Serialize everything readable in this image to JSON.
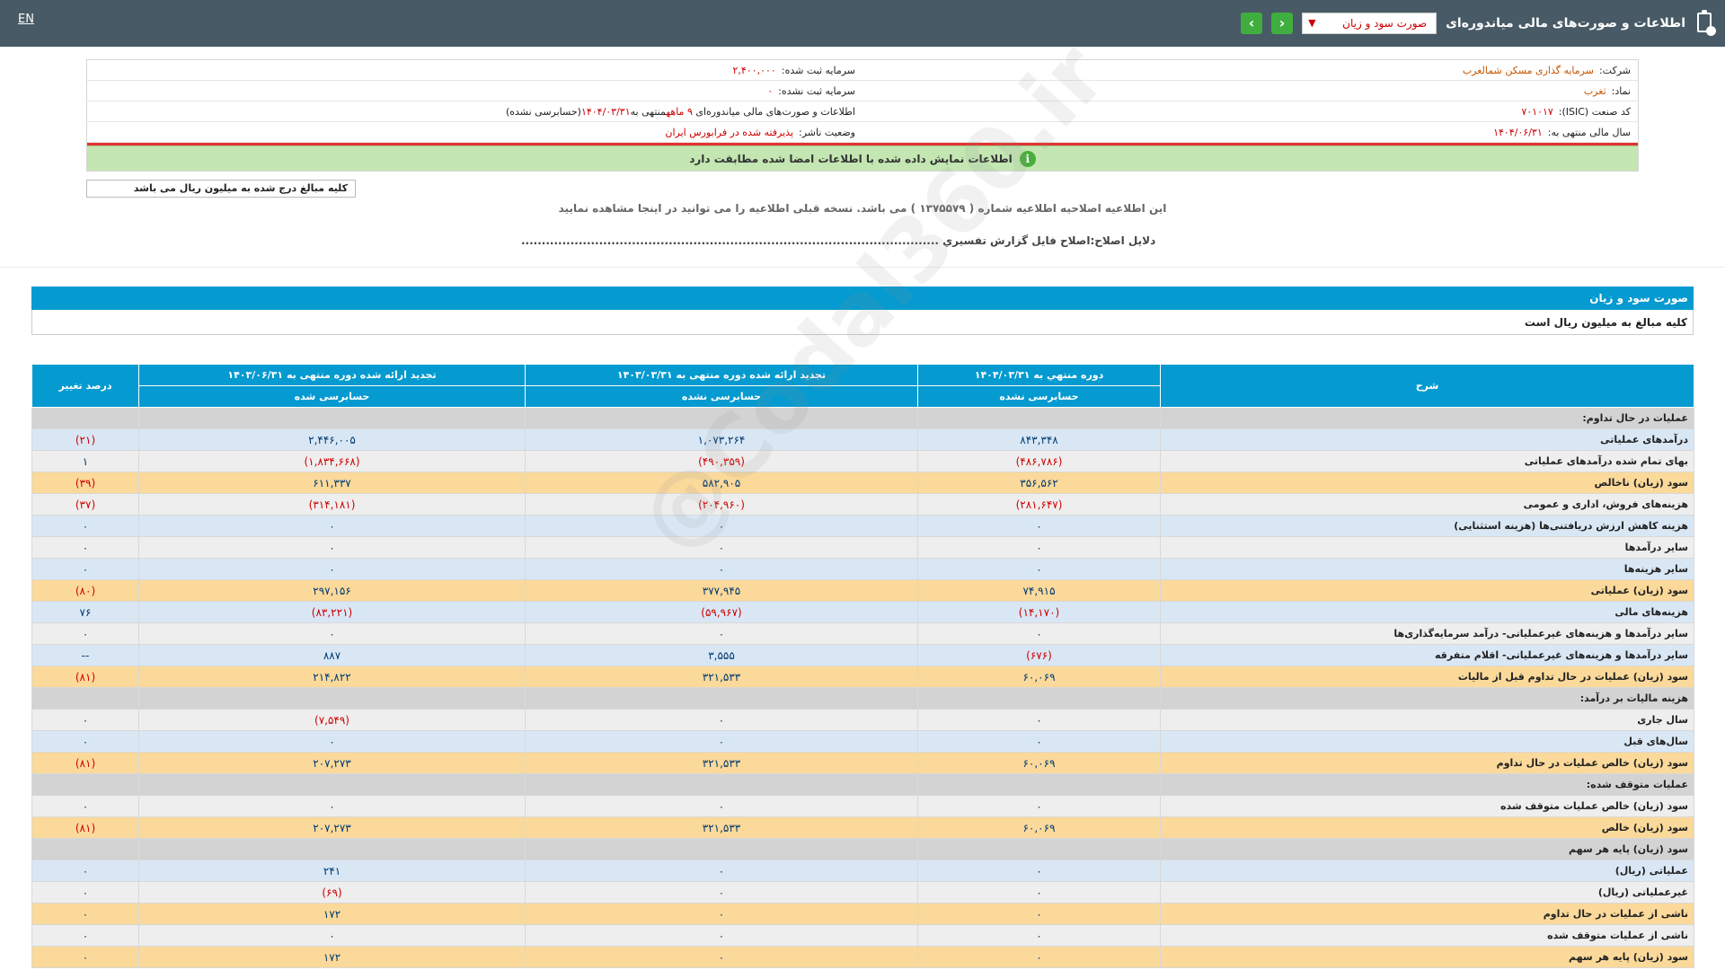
{
  "topbar": {
    "lang": "EN",
    "title": "اطلاعات و صورت‌های مالی میاندوره‌ای",
    "report_select": "صورت سود و زیان"
  },
  "info": {
    "company_label": "شرکت:",
    "company": "سرمایه گذاری مسکن شمالغرب",
    "symbol_label": "نماد:",
    "symbol": "ثغرب",
    "isic_label": "کد صنعت (ISIC):",
    "isic": "۷۰۱۰۱۷",
    "fiscal_label": "سال مالی منتهی به:",
    "fiscal": "۱۴۰۴/۰۶/۳۱",
    "reg_capital_label": "سرمایه ثبت شده:",
    "reg_capital": "۲,۴۰۰,۰۰۰",
    "unreg_capital_label": "سرمایه ثبت نشده:",
    "unreg_capital": "۰",
    "statements_text": "اطلاعات و صورت‌های مالی میاندوره‌ای",
    "statements_period": "۹ ماهه",
    "statements_end_prefix": "منتهی به",
    "statements_date": "۱۴۰۴/۰۳/۳۱",
    "statements_status": "(حسابرسی نشده)",
    "publisher_label": "وضعیت ناشر:",
    "publisher_status": "پذیرفته شده در فرابورس ایران"
  },
  "green_notice": "اطلاعات نمایش داده شده با اطلاعات امضا شده مطابقت دارد",
  "unit_note": "کلیه مبالغ درج شده به میلیون ریال می باشد",
  "correction_notice": "این اطلاعیه اصلاحیه اطلاعیه شماره ( ۱۳۷۵۵۷۹ ) می باشد. نسخه قبلی اطلاعیه را می توانید در اینجا مشاهده نمایید",
  "correction_reason": "دلایل اصلاح:اصلاح فایل گزارش تفسیري ......................................................................................................",
  "section": {
    "title": "صورت سود و زیان",
    "subtitle": "کلیه مبالغ به میلیون ریال است"
  },
  "table": {
    "col_desc": "شرح",
    "col1_title": "دوره منتهي به ۱۴۰۴/۰۳/۳۱",
    "col1_sub": "حسابرسی نشده",
    "col2_title": "تجدید ارائه شده دوره منتهی به ۱۴۰۳/۰۳/۳۱",
    "col2_sub": "حسابرسی نشده",
    "col3_title": "تجدید ارائه شده دوره منتهی به ۱۴۰۳/۰۶/۳۱",
    "col3_sub": "حسابرسی شده",
    "col_change": "درصد تغییر",
    "rows": [
      {
        "desc": "عملیات در حال تداوم:",
        "type": "sec"
      },
      {
        "desc": "درآمدهای عملیاتی",
        "type": "blue",
        "c1": "۸۴۳,۳۴۸",
        "c2": "۱,۰۷۳,۲۶۴",
        "c3": "۲,۴۴۶,۰۰۵",
        "chg": "(۲۱)"
      },
      {
        "desc": "بهای تمام شده درآمدهای عملیاتی",
        "type": "gray",
        "c1": "(۴۸۶,۷۸۶)",
        "c2": "(۴۹۰,۳۵۹)",
        "c3": "(۱,۸۳۴,۶۶۸)",
        "chg": "۱"
      },
      {
        "desc": "سود (زیان) ناخالص",
        "type": "yellow",
        "c1": "۳۵۶,۵۶۲",
        "c2": "۵۸۲,۹۰۵",
        "c3": "۶۱۱,۳۳۷",
        "chg": "(۳۹)"
      },
      {
        "desc": "هزینه‌های فروش، اداری و عمومی",
        "type": "gray",
        "c1": "(۲۸۱,۶۴۷)",
        "c2": "(۲۰۴,۹۶۰)",
        "c3": "(۳۱۴,۱۸۱)",
        "chg": "(۳۷)"
      },
      {
        "desc": "هزینه کاهش ارزش دریافتنی‌ها (هزینه استثنایی)",
        "type": "blue",
        "c1": "۰",
        "c2": "۰",
        "c3": "۰",
        "chg": "۰"
      },
      {
        "desc": "سایر درآمدها",
        "type": "gray",
        "c1": "۰",
        "c2": "۰",
        "c3": "۰",
        "chg": "۰"
      },
      {
        "desc": "سایر هزینه‌ها",
        "type": "blue",
        "c1": "۰",
        "c2": "۰",
        "c3": "۰",
        "chg": "۰"
      },
      {
        "desc": "سود (زیان) عملیاتی",
        "type": "yellow",
        "c1": "۷۴,۹۱۵",
        "c2": "۳۷۷,۹۴۵",
        "c3": "۲۹۷,۱۵۶",
        "chg": "(۸۰)"
      },
      {
        "desc": "هزینه‌های مالی",
        "type": "blue",
        "c1": "(۱۴,۱۷۰)",
        "c2": "(۵۹,۹۶۷)",
        "c3": "(۸۳,۲۲۱)",
        "chg": "۷۶"
      },
      {
        "desc": "سایر درآمدها و هزینه‌های غیرعملیاتی- درآمد سرمایه‌گذاری‌ها",
        "type": "gray",
        "c1": "۰",
        "c2": "۰",
        "c3": "۰",
        "chg": "۰"
      },
      {
        "desc": "سایر درآمدها و هزینه‌های غیرعملیاتی- اقلام متفرقه",
        "type": "blue",
        "c1": "(۶۷۶)",
        "c2": "۳,۵۵۵",
        "c3": "۸۸۷",
        "chg": "--"
      },
      {
        "desc": "سود (زیان) عملیات در حال تداوم قبل از مالیات",
        "type": "yellow",
        "c1": "۶۰,۰۶۹",
        "c2": "۳۲۱,۵۳۳",
        "c3": "۲۱۴,۸۲۲",
        "chg": "(۸۱)"
      },
      {
        "desc": "هزینه مالیات بر درآمد:",
        "type": "sec"
      },
      {
        "desc": "سال جاری",
        "type": "gray",
        "c1": "۰",
        "c2": "۰",
        "c3": "(۷,۵۴۹)",
        "chg": "۰"
      },
      {
        "desc": "سال‌های قبل",
        "type": "blue",
        "c1": "۰",
        "c2": "۰",
        "c3": "۰",
        "chg": "۰"
      },
      {
        "desc": "سود (زیان) خالص عملیات در حال تداوم",
        "type": "yellow",
        "c1": "۶۰,۰۶۹",
        "c2": "۳۲۱,۵۳۳",
        "c3": "۲۰۷,۲۷۳",
        "chg": "(۸۱)"
      },
      {
        "desc": "عملیات متوقف شده:",
        "type": "sec"
      },
      {
        "desc": "سود (زیان) خالص عملیات متوقف شده",
        "type": "gray",
        "c1": "۰",
        "c2": "۰",
        "c3": "۰",
        "chg": "۰"
      },
      {
        "desc": "سود (زیان) خالص",
        "type": "yellow",
        "c1": "۶۰,۰۶۹",
        "c2": "۳۲۱,۵۳۳",
        "c3": "۲۰۷,۲۷۳",
        "chg": "(۸۱)"
      },
      {
        "desc": "سود (زیان) پایه هر سهم",
        "type": "sec"
      },
      {
        "desc": "عملیاتی (ریال)",
        "type": "blue",
        "c1": "۰",
        "c2": "۰",
        "c3": "۲۴۱",
        "chg": "۰"
      },
      {
        "desc": "غیرعملیاتی (ریال)",
        "type": "gray",
        "c1": "۰",
        "c2": "۰",
        "c3": "(۶۹)",
        "chg": "۰"
      },
      {
        "desc": "ناشی از عملیات در حال تداوم",
        "type": "yellow",
        "c1": "۰",
        "c2": "۰",
        "c3": "۱۷۲",
        "chg": "۰"
      },
      {
        "desc": "ناشی از عملیات متوقف شده",
        "type": "gray",
        "c1": "۰",
        "c2": "۰",
        "c3": "۰",
        "chg": "۰"
      },
      {
        "desc": "سود (زیان) پایه هر سهم",
        "type": "yellow",
        "c1": "۰",
        "c2": "۰",
        "c3": "۱۷۲",
        "chg": "۰"
      }
    ]
  },
  "watermark": "@Codal360.ir"
}
